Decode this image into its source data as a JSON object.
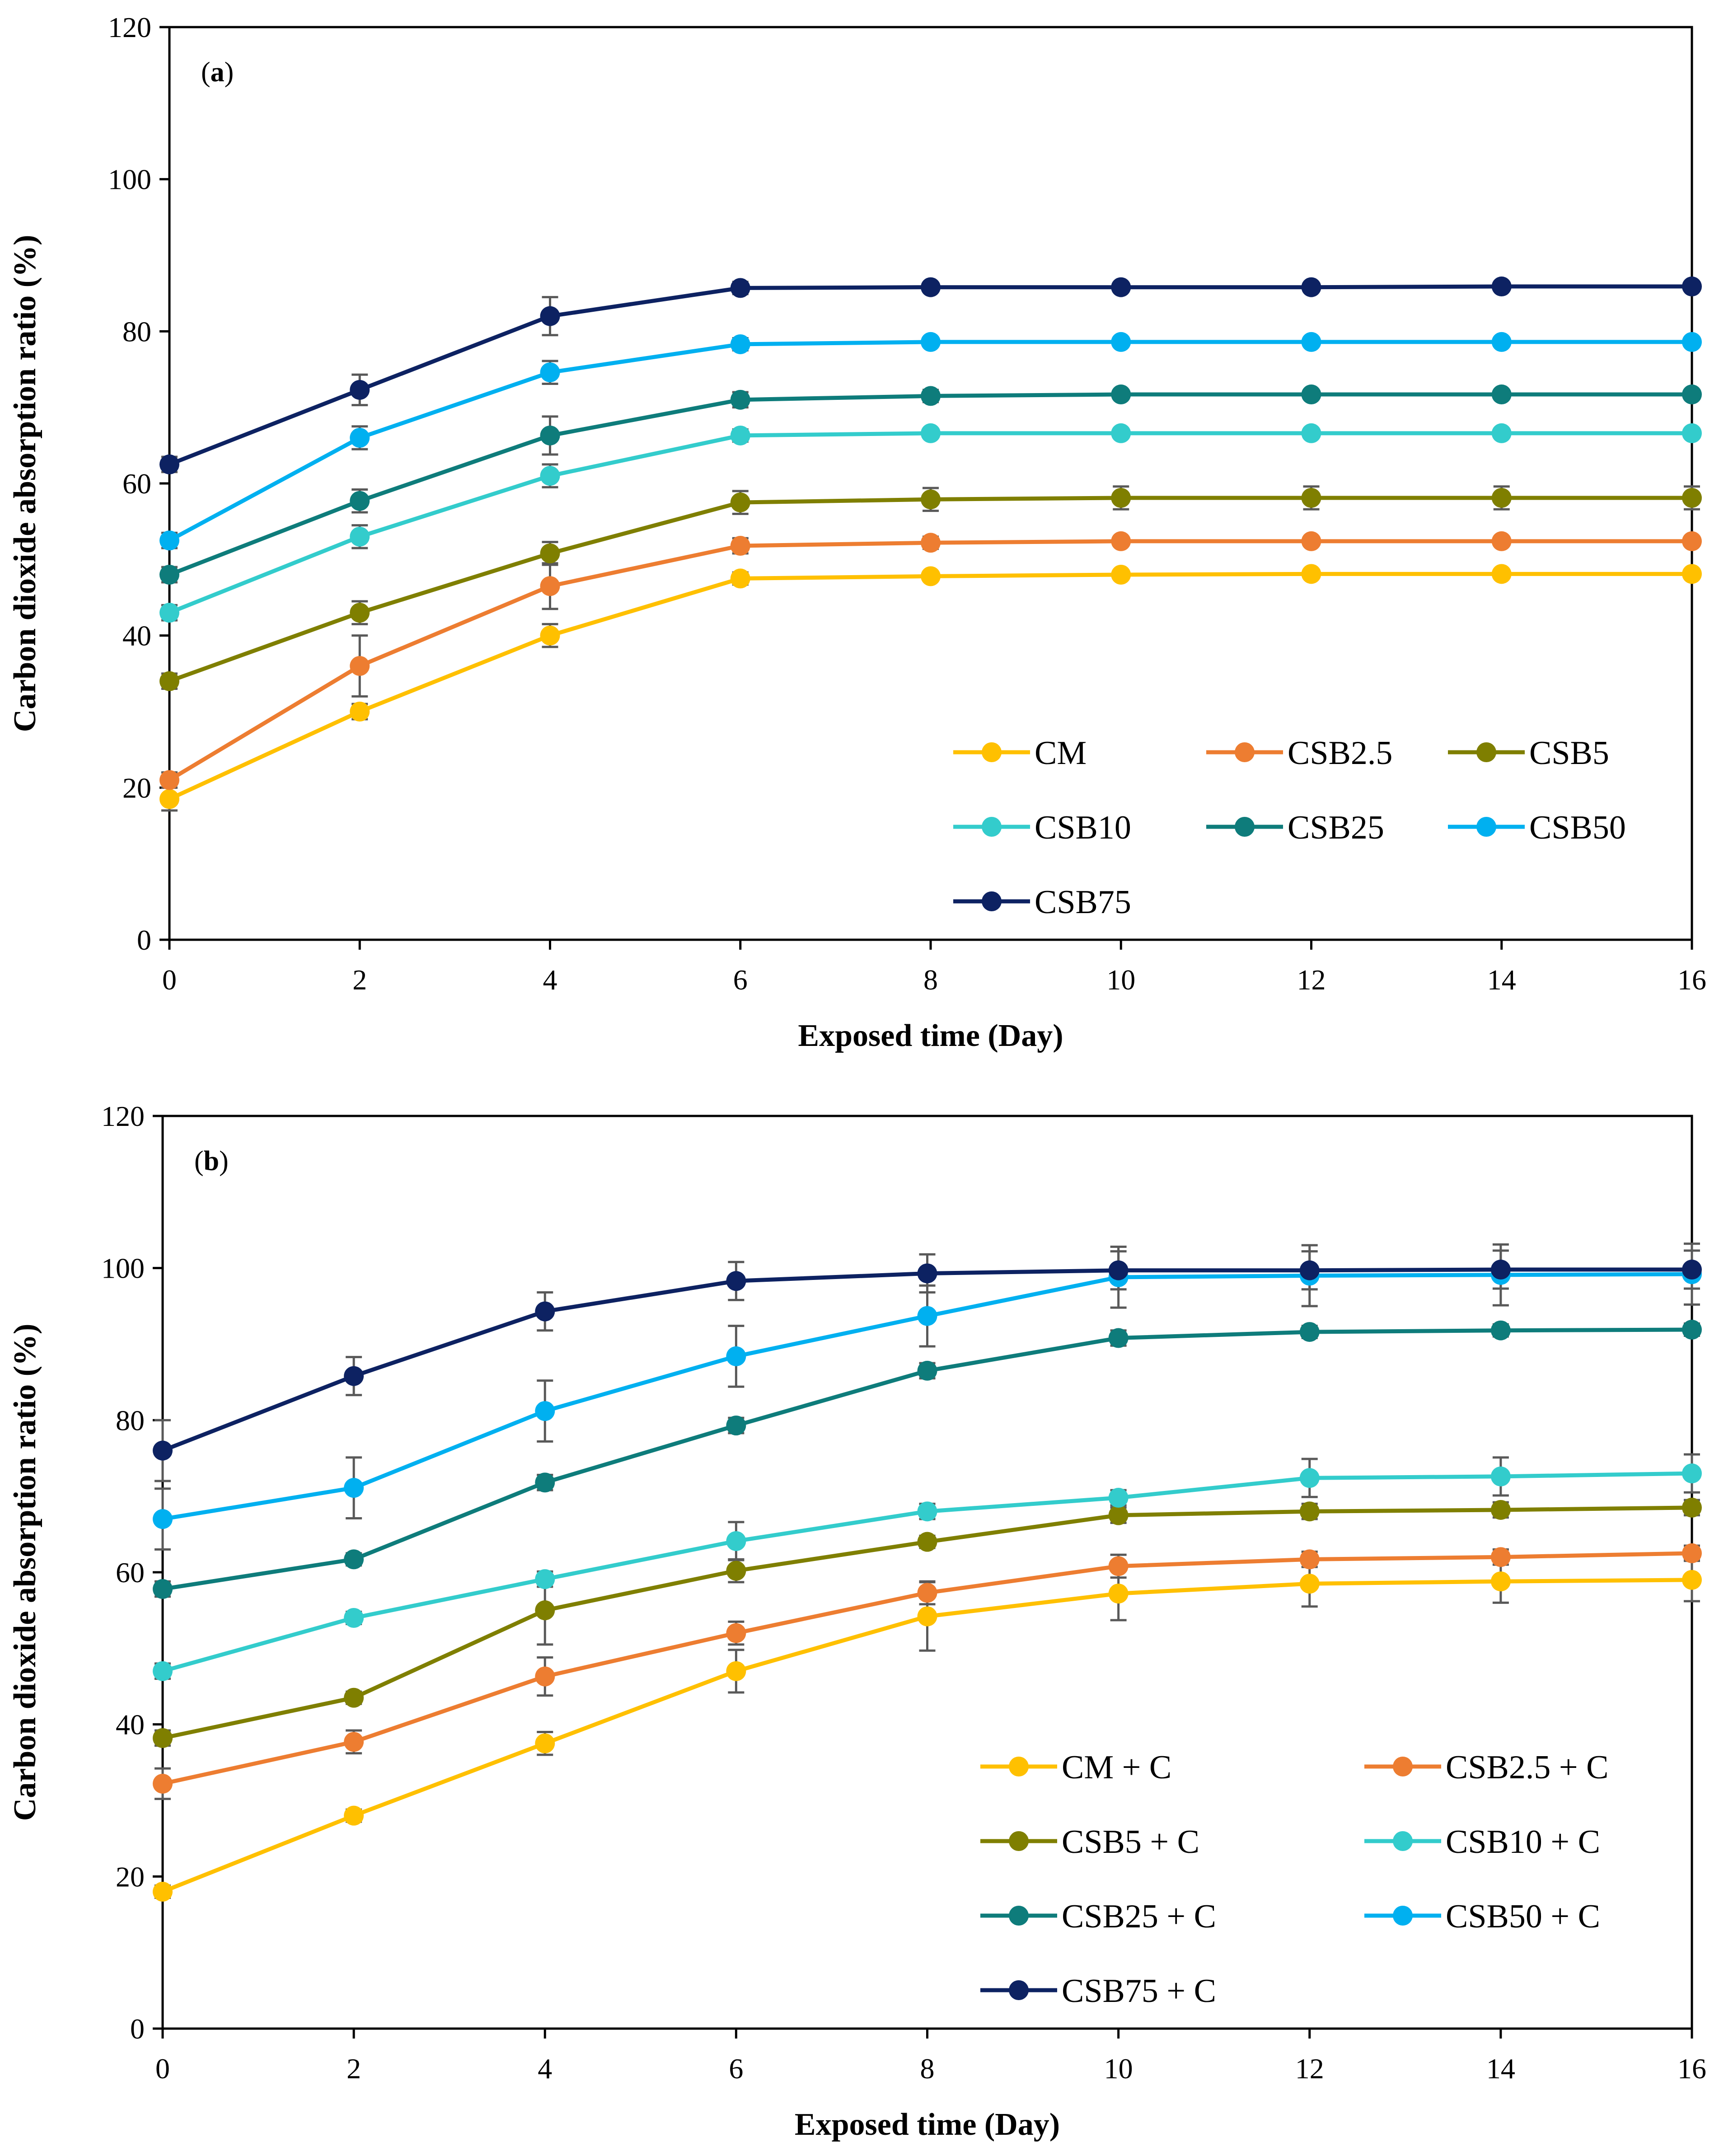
{
  "chart_data": [
    {
      "type": "line",
      "panel_label": "(a)",
      "panel_letter": "a",
      "xlabel": "Exposed time (Day)",
      "ylabel": "Carbon dioxide absorption ratio (%)",
      "x": [
        0,
        2,
        4,
        6,
        8,
        10,
        12,
        14,
        16
      ],
      "xlim": [
        0,
        16
      ],
      "ylim": [
        0,
        120
      ],
      "xticks": [
        "0",
        "2",
        "4",
        "6",
        "8",
        "10",
        "12",
        "14",
        "16"
      ],
      "yticks": [
        "0",
        "20",
        "40",
        "60",
        "80",
        "100",
        "120"
      ],
      "grid": false,
      "legend_position": "bottom-right",
      "series": [
        {
          "name": "CM",
          "color": "#FFC000",
          "values": [
            18.5,
            30,
            40,
            47.5,
            47.8,
            48,
            48.1,
            48.1,
            48.1
          ],
          "errors": [
            1.5,
            1,
            1.5,
            0.8,
            0.6,
            0.5,
            0.5,
            0.5,
            0.5
          ]
        },
        {
          "name": "CSB2.5",
          "color": "#ED7D31",
          "values": [
            21,
            36,
            46.5,
            51.8,
            52.2,
            52.4,
            52.4,
            52.4,
            52.4
          ],
          "errors": [
            1,
            4,
            3,
            1,
            0.8,
            0.6,
            0.6,
            0.6,
            0.6
          ]
        },
        {
          "name": "CSB5",
          "color": "#7F7F00",
          "values": [
            34,
            43,
            50.8,
            57.5,
            57.9,
            58.1,
            58.1,
            58.1,
            58.1
          ],
          "errors": [
            1,
            1.5,
            1.5,
            1.5,
            1.5,
            1.5,
            1.5,
            1.5,
            1.5
          ]
        },
        {
          "name": "CSB10",
          "color": "#33CCCC",
          "values": [
            43,
            53,
            61,
            66.3,
            66.6,
            66.6,
            66.6,
            66.6,
            66.6
          ],
          "errors": [
            1,
            1.5,
            1.5,
            0.8,
            0.6,
            0.6,
            0.6,
            0.6,
            0.6
          ]
        },
        {
          "name": "CSB25",
          "color": "#0E7C7B",
          "values": [
            48,
            57.7,
            66.3,
            71,
            71.5,
            71.7,
            71.7,
            71.7,
            71.7
          ],
          "errors": [
            1,
            1.5,
            2.5,
            1,
            0.8,
            0.6,
            0.6,
            0.6,
            0.6
          ]
        },
        {
          "name": "CSB50",
          "color": "#00B0F0",
          "values": [
            52.5,
            66,
            74.6,
            78.3,
            78.6,
            78.6,
            78.6,
            78.6,
            78.6
          ],
          "errors": [
            1,
            1.5,
            1.5,
            0.8,
            0.6,
            0.6,
            0.6,
            0.6,
            0.6
          ]
        },
        {
          "name": "CSB75",
          "color": "#0D2262",
          "values": [
            62.5,
            72.3,
            82,
            85.7,
            85.8,
            85.8,
            85.8,
            85.9,
            85.9
          ],
          "errors": [
            1,
            2,
            2.5,
            0.8,
            0.6,
            0.6,
            0.6,
            0.6,
            0.6
          ]
        }
      ]
    },
    {
      "type": "line",
      "panel_label": "(b)",
      "panel_letter": "b",
      "xlabel": "Exposed time (Day)",
      "ylabel": "Carbon dioxide absorption ratio (%)",
      "x": [
        0,
        2,
        4,
        6,
        8,
        10,
        12,
        14,
        16
      ],
      "xlim": [
        0,
        16
      ],
      "ylim": [
        0,
        120
      ],
      "xticks": [
        "0",
        "2",
        "4",
        "6",
        "8",
        "10",
        "12",
        "14",
        "16"
      ],
      "yticks": [
        "0",
        "20",
        "40",
        "60",
        "80",
        "100",
        "120"
      ],
      "grid": false,
      "legend_position": "bottom-right",
      "series": [
        {
          "name": "CM + C",
          "color": "#FFC000",
          "values": [
            18,
            28,
            37.5,
            47,
            54.2,
            57.2,
            58.5,
            58.8,
            59
          ],
          "errors": [
            0.8,
            0.8,
            1.5,
            2.8,
            4.5,
            3.5,
            3,
            2.8,
            2.8
          ]
        },
        {
          "name": "CSB2.5 + C",
          "color": "#ED7D31",
          "values": [
            32.2,
            37.7,
            46.3,
            52,
            57.3,
            60.8,
            61.7,
            62,
            62.5
          ],
          "errors": [
            2,
            1.5,
            2.5,
            1.5,
            1.5,
            1.5,
            1,
            1,
            1
          ]
        },
        {
          "name": "CSB5 + C",
          "color": "#7F7F00",
          "values": [
            38.2,
            43.5,
            55,
            60.2,
            64,
            67.5,
            68,
            68.2,
            68.5
          ],
          "errors": [
            1,
            0.8,
            4.5,
            1.5,
            0.8,
            1,
            1,
            1,
            1
          ]
        },
        {
          "name": "CSB10 + C",
          "color": "#33CCCC",
          "values": [
            47,
            54,
            59.1,
            64.1,
            68,
            69.8,
            72.4,
            72.6,
            73
          ],
          "errors": [
            1,
            0.8,
            1,
            2.5,
            1,
            1,
            2.5,
            2.5,
            2.5
          ]
        },
        {
          "name": "CSB25 + C",
          "color": "#0E7C7B",
          "values": [
            57.8,
            61.7,
            71.8,
            79.3,
            86.5,
            90.8,
            91.6,
            91.8,
            91.9
          ],
          "errors": [
            1,
            0.8,
            1,
            1,
            1,
            1,
            0.8,
            0.8,
            0.8
          ]
        },
        {
          "name": "CSB50 + C",
          "color": "#00B0F0",
          "values": [
            67,
            71.1,
            81.2,
            88.4,
            93.7,
            98.8,
            99,
            99.1,
            99.2
          ],
          "errors": [
            4,
            4,
            4,
            4,
            4,
            4,
            4,
            4,
            4
          ]
        },
        {
          "name": "CSB75 + C",
          "color": "#0D2262",
          "values": [
            76,
            85.8,
            94.3,
            98.3,
            99.3,
            99.7,
            99.7,
            99.8,
            99.8
          ],
          "errors": [
            4,
            2.5,
            2.5,
            2.5,
            2.5,
            2.5,
            2.5,
            2.5,
            2.5
          ]
        }
      ]
    }
  ]
}
